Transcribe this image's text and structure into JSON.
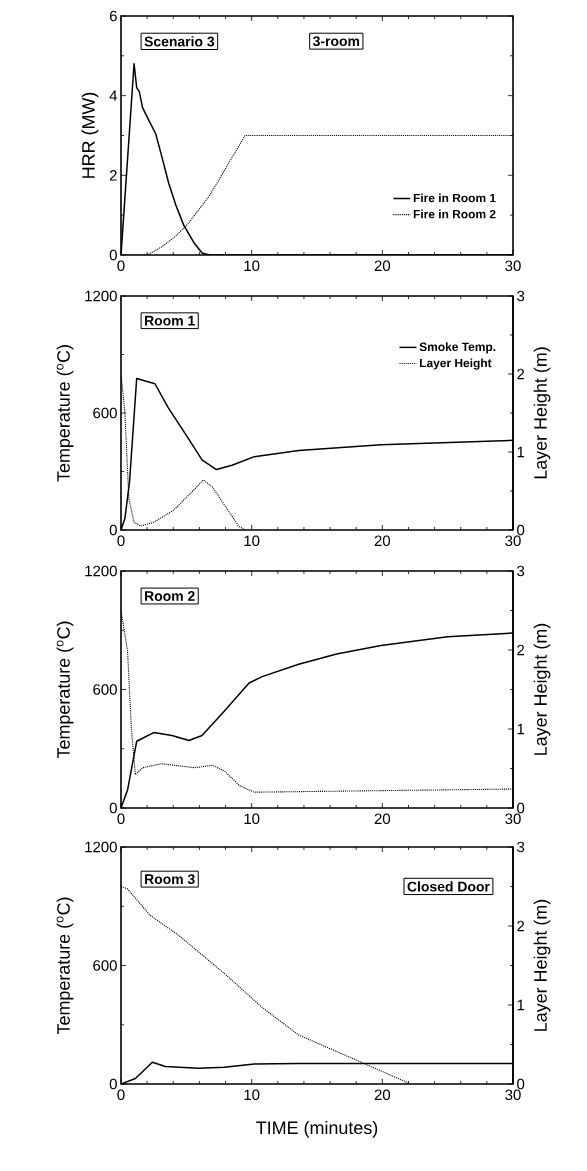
{
  "chart_data": [
    {
      "type": "line",
      "ylabel": "HRR (MW)",
      "xlim": [
        0,
        30
      ],
      "xticks": [
        0,
        10,
        20,
        30
      ],
      "ylim": [
        0,
        6
      ],
      "yticks": [
        0,
        2,
        4,
        6
      ],
      "legend": "bottom right",
      "annotations": [
        "Scenario 3",
        "3-room"
      ],
      "series": [
        {
          "name": "Fire in Room 1",
          "color": "#000000",
          "line_style": "solid",
          "x": [
            0,
            0.5,
            1.0,
            1.2,
            1.4,
            1.65,
            2.1,
            2.65,
            3.1,
            3.65,
            4.2,
            4.8,
            5.6,
            6.2,
            6.8,
            30
          ],
          "values": [
            0,
            2.4,
            4.8,
            4.2,
            4.1,
            3.7,
            3.4,
            3.05,
            2.5,
            1.8,
            1.25,
            0.75,
            0.3,
            0.05,
            0,
            0
          ]
        },
        {
          "name": "Fire in Room 2",
          "color": "#000000",
          "line_style": "dotted",
          "x": [
            0,
            2,
            3.1,
            4.1,
            5.1,
            6.8,
            8.5,
            9.5,
            30
          ],
          "values": [
            0,
            0,
            0.2,
            0.45,
            0.77,
            1.5,
            2.45,
            3.0,
            3.0
          ]
        }
      ]
    },
    {
      "type": "line",
      "ylabel": "Temperature ($^{o}$C)",
      "y2label": "Layer Height (m)",
      "xlim": [
        0,
        30
      ],
      "xticks": [
        0,
        10,
        20,
        30
      ],
      "ylim": [
        0,
        1200
      ],
      "yticks": [
        0,
        600,
        1200
      ],
      "y2lim": [
        0,
        3
      ],
      "y2ticks": [
        0,
        1,
        2,
        3
      ],
      "legend": "top right",
      "annotations": [
        "Room 1"
      ],
      "series": [
        {
          "name": "Smoke Temp.",
          "color": "#000000",
          "line_style": "solid",
          "x": [
            0,
            0.3,
            0.65,
            1.2,
            2.6,
            3.6,
            5.1,
            6.2,
            7.3,
            8.5,
            10.2,
            13.6,
            19.9,
            30
          ],
          "values": [
            0,
            60,
            245,
            777,
            750,
            629,
            475,
            360,
            310,
            332,
            376,
            408,
            437,
            460
          ]
        },
        {
          "name": "Layer Height",
          "color": "#000000",
          "line_style": "dotted",
          "axis": "y2",
          "x": [
            0,
            0.3,
            0.6,
            1.0,
            1.5,
            2.5,
            4,
            5.5,
            6.3,
            7,
            8,
            9,
            9.5
          ],
          "values": [
            2.0,
            1.5,
            0.4,
            0.1,
            0.05,
            0.1,
            0.25,
            0.5,
            0.64,
            0.55,
            0.3,
            0.05,
            0
          ]
        }
      ]
    },
    {
      "type": "line",
      "ylabel": "Temperature ($^{o}$C)",
      "y2label": "Layer Height (m)",
      "xlim": [
        0,
        30
      ],
      "xticks": [
        0,
        10,
        20,
        30
      ],
      "ylim": [
        0,
        1200
      ],
      "yticks": [
        0,
        600,
        1200
      ],
      "y2lim": [
        0,
        3
      ],
      "y2ticks": [
        0,
        1,
        2,
        3
      ],
      "annotations": [
        "Room 2"
      ],
      "series": [
        {
          "color": "#000000",
          "line_style": "solid",
          "x": [
            0,
            0.5,
            1.2,
            2.5,
            3.9,
            5.2,
            6.2,
            7.9,
            9.8,
            10.8,
            13.6,
            16.5,
            19.9,
            25,
            30
          ],
          "values": [
            0,
            91,
            338,
            382,
            367,
            342,
            367,
            490,
            633,
            665,
            728,
            780,
            823,
            867,
            886
          ]
        },
        {
          "color": "#000000",
          "line_style": "dotted",
          "axis": "y2",
          "x": [
            0,
            0.5,
            0.8,
            1.1,
            1.65,
            3.1,
            5.6,
            7,
            7.9,
            9.1,
            10.2,
            30
          ],
          "values": [
            2.5,
            1.99,
            0.99,
            0.42,
            0.51,
            0.56,
            0.51,
            0.54,
            0.47,
            0.28,
            0.2,
            0.24
          ]
        }
      ]
    },
    {
      "type": "line",
      "xlabel": "TIME (minutes)",
      "ylabel": "Temperature ($^{o}$C)",
      "y2label": "Layer Height (m)",
      "xlim": [
        0,
        30
      ],
      "xticks": [
        0,
        10,
        20,
        30
      ],
      "ylim": [
        0,
        1200
      ],
      "yticks": [
        0,
        600,
        1200
      ],
      "y2lim": [
        0,
        3
      ],
      "y2ticks": [
        0,
        1,
        2,
        3
      ],
      "annotations": [
        "Room 3",
        "Closed Door"
      ],
      "series": [
        {
          "color": "#000000",
          "line_style": "solid",
          "x": [
            0,
            1.1,
            2.4,
            3.4,
            5.9,
            7.9,
            10.2,
            13.6,
            30
          ],
          "values": [
            0,
            28,
            110,
            89,
            80,
            85,
            101,
            104,
            104
          ]
        },
        {
          "color": "#000000",
          "line_style": "dotted",
          "axis": "y2",
          "x": [
            0,
            0.5,
            2.2,
            4.5,
            7.9,
            10.8,
            13.6,
            17.9,
            21.9,
            22
          ],
          "values": [
            2.5,
            2.47,
            2.14,
            1.87,
            1.4,
            0.97,
            0.62,
            0.31,
            0.02,
            0
          ]
        }
      ]
    }
  ]
}
